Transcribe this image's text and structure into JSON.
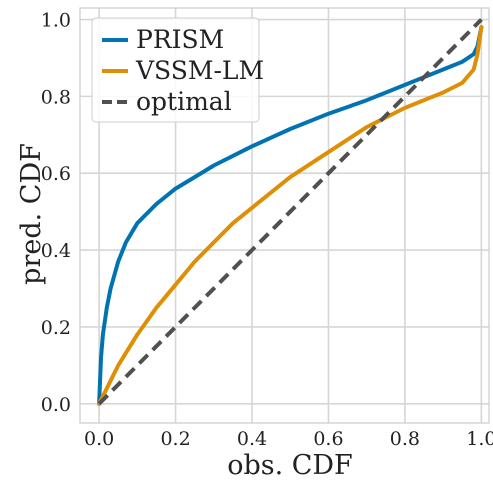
{
  "chart_data": {
    "type": "line",
    "xlabel": "obs. CDF",
    "ylabel": "pred. CDF",
    "xlim": [
      -0.05,
      1.02
    ],
    "ylim": [
      -0.05,
      1.03
    ],
    "xticks": [
      0.0,
      0.2,
      0.4,
      0.6,
      0.8,
      1.0
    ],
    "yticks": [
      0.0,
      0.2,
      0.4,
      0.6,
      0.8,
      1.0
    ],
    "xtick_labels": [
      "0.0",
      "0.2",
      "0.4",
      "0.6",
      "0.8",
      "1.0"
    ],
    "ytick_labels": [
      "0.0",
      "0.2",
      "0.4",
      "0.6",
      "0.8",
      "1.0"
    ],
    "grid": true,
    "legend_position": "top-left",
    "series": [
      {
        "name": "PRISM",
        "color": "#0173b2",
        "style": "solid",
        "x": [
          0,
          0.005,
          0.01,
          0.02,
          0.03,
          0.05,
          0.07,
          0.1,
          0.15,
          0.2,
          0.25,
          0.3,
          0.4,
          0.5,
          0.6,
          0.7,
          0.8,
          0.85,
          0.9,
          0.95,
          0.98,
          0.99,
          1.0
        ],
        "y": [
          0,
          0.12,
          0.18,
          0.25,
          0.3,
          0.37,
          0.42,
          0.47,
          0.52,
          0.56,
          0.59,
          0.62,
          0.67,
          0.715,
          0.755,
          0.79,
          0.83,
          0.85,
          0.87,
          0.89,
          0.91,
          0.93,
          0.98
        ]
      },
      {
        "name": "VSSM-LM",
        "color": "#de8f05",
        "style": "solid",
        "x": [
          0,
          0.02,
          0.05,
          0.1,
          0.15,
          0.2,
          0.25,
          0.3,
          0.35,
          0.4,
          0.5,
          0.6,
          0.7,
          0.75,
          0.8,
          0.85,
          0.9,
          0.95,
          0.98,
          0.99,
          1.0
        ],
        "y": [
          0,
          0.04,
          0.1,
          0.18,
          0.25,
          0.31,
          0.37,
          0.42,
          0.47,
          0.51,
          0.59,
          0.655,
          0.72,
          0.745,
          0.77,
          0.79,
          0.81,
          0.835,
          0.87,
          0.91,
          0.98
        ]
      },
      {
        "name": "optimal",
        "color": "#505050",
        "style": "dashed",
        "x": [
          0,
          1
        ],
        "y": [
          0,
          1
        ]
      }
    ]
  }
}
